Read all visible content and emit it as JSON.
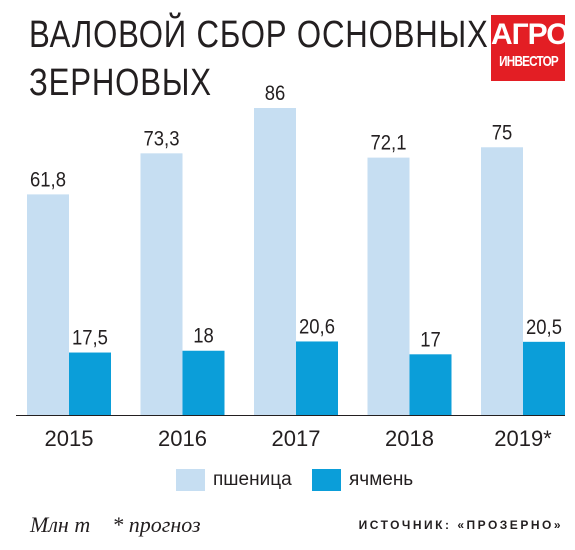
{
  "title_lines": [
    "ВАЛОВОЙ СБОР ОСНОВНЫХ",
    "ЗЕРНОВЫХ"
  ],
  "logo": {
    "line1": "АГРО",
    "line2": "ИНВЕСТОР"
  },
  "footer": {
    "unit": "Млн т",
    "note": "* прогноз",
    "source": "ИСТОЧНИК: «ПРОЗЕРНО»"
  },
  "colors": {
    "wheat": "#c6def2",
    "barley": "#0b9ed9",
    "logo": "#e31e24",
    "text": "#231f20"
  },
  "chart_data": {
    "type": "bar",
    "categories": [
      "2015",
      "2016",
      "2017",
      "2018",
      "2019*"
    ],
    "series": [
      {
        "name": "пшеница",
        "values": [
          61.8,
          73.3,
          86,
          72.1,
          75
        ],
        "labels": [
          "61,8",
          "73,3",
          "86",
          "72,1",
          "75"
        ]
      },
      {
        "name": "ячмень",
        "values": [
          17.5,
          18,
          20.6,
          17,
          20.5
        ],
        "labels": [
          "17,5",
          "18",
          "20,6",
          "17",
          "20,5"
        ]
      }
    ],
    "ylim": [
      0,
      86
    ],
    "grid": false,
    "legend": "bottom-center"
  }
}
